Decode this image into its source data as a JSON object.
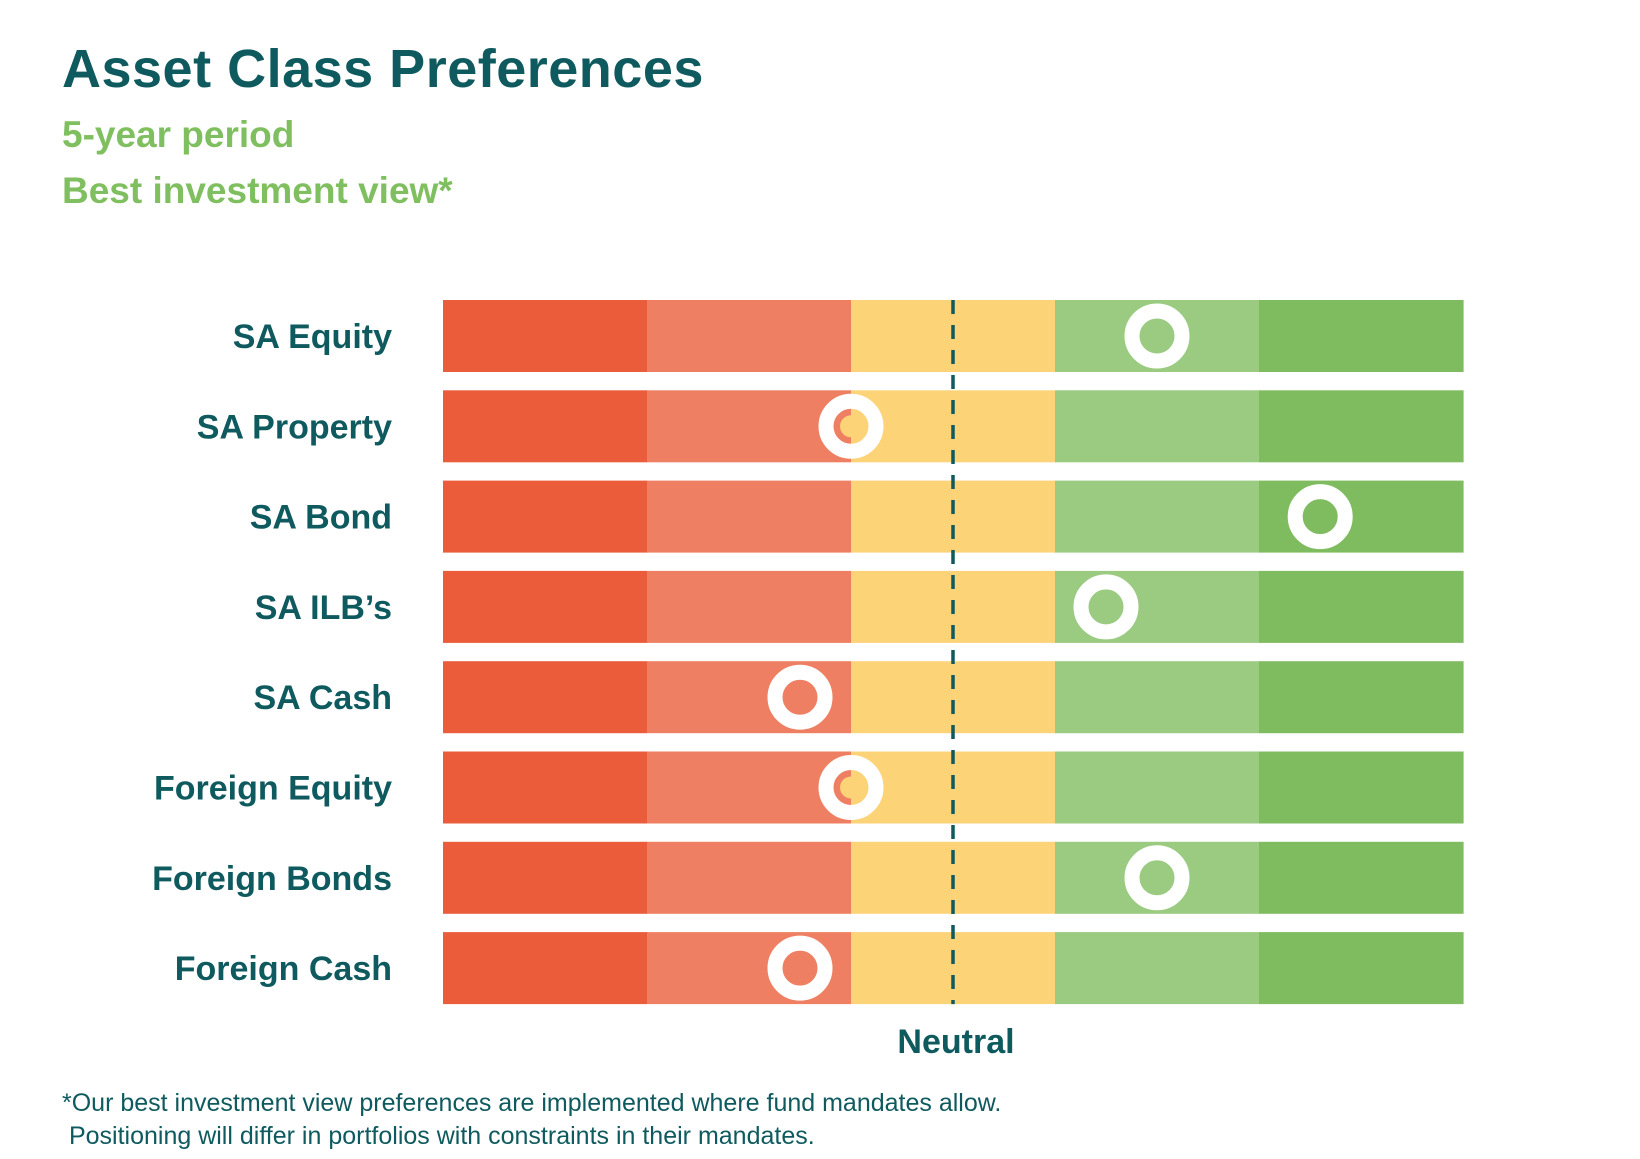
{
  "title": "Asset Class Preferences",
  "subtitle_1": "5-year period",
  "subtitle_2": "Best investment view*",
  "chart_data": {
    "type": "bar",
    "categories": [
      "SA Equity",
      "SA Property",
      "SA Bond",
      "SA ILB’s",
      "SA Cash",
      "Foreign Equity",
      "Foreign Bonds",
      "Foreign Cash"
    ],
    "scale_bands": 5,
    "values": [
      3.5,
      2.0,
      4.3,
      3.25,
      1.75,
      2.0,
      3.5,
      1.75
    ],
    "neutral_value": 2.5,
    "x_range": [
      0,
      5
    ],
    "neutral_label": "Neutral",
    "band_colors": [
      "#ea5c3a",
      "#ee7f62",
      "#fdd378",
      "#9acb80",
      "#7fbc5f"
    ],
    "marker_color": "#ffffff",
    "neutral_line_color": "#0f5a5e",
    "label_color": "#0f5a5e"
  },
  "footnote_line_1": "*Our best investment view preferences are implemented where fund mandates allow.",
  "footnote_line_2": " Positioning will differ in portfolios with constraints in their mandates."
}
